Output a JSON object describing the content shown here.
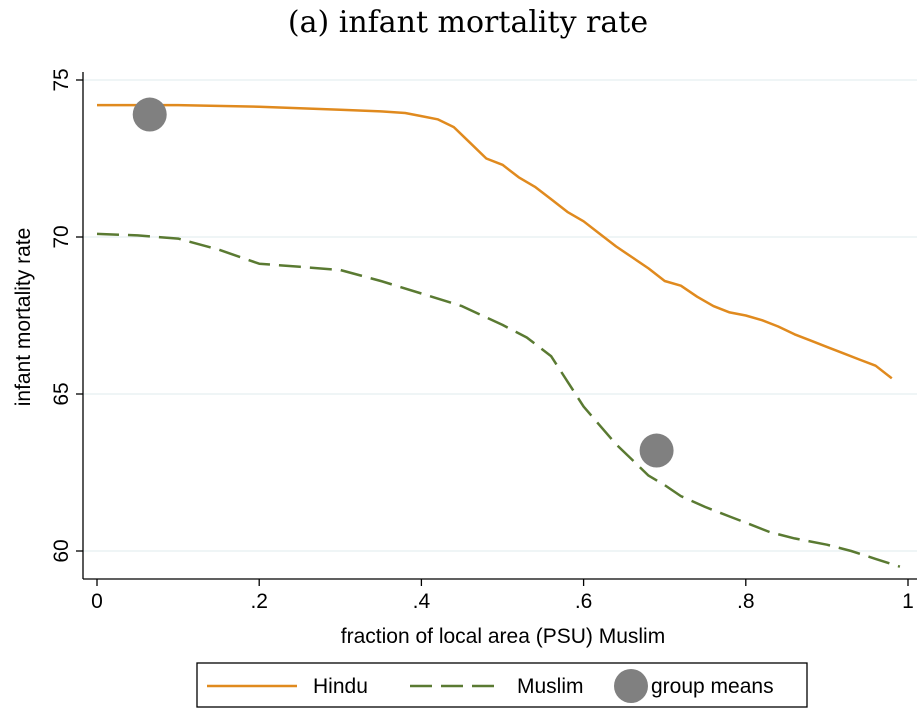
{
  "chart_data": {
    "type": "line",
    "title": "(a) infant mortality rate",
    "xlabel": "fraction of local area (PSU) Muslim",
    "ylabel": "infant mortality rate",
    "xlim": [
      0,
      1
    ],
    "ylim": [
      59.5,
      75.4
    ],
    "xticks": [
      0,
      0.2,
      0.4,
      0.6,
      0.8,
      1
    ],
    "xtick_labels": [
      "0",
      ".2",
      ".4",
      ".6",
      ".8",
      "1"
    ],
    "yticks": [
      60,
      65,
      70,
      75
    ],
    "ytick_labels": [
      "60",
      "65",
      "70",
      "75"
    ],
    "grid": true,
    "legend_position": "bottom",
    "series": [
      {
        "name": "Hindu",
        "style": "solid",
        "color": "#e08a1e",
        "x": [
          0.0,
          0.05,
          0.1,
          0.2,
          0.3,
          0.35,
          0.38,
          0.4,
          0.42,
          0.44,
          0.46,
          0.48,
          0.5,
          0.52,
          0.54,
          0.56,
          0.58,
          0.6,
          0.62,
          0.64,
          0.66,
          0.68,
          0.7,
          0.72,
          0.74,
          0.76,
          0.78,
          0.8,
          0.82,
          0.84,
          0.86,
          0.88,
          0.9,
          0.92,
          0.94,
          0.96,
          0.98
        ],
        "y": [
          74.2,
          74.2,
          74.2,
          74.15,
          74.05,
          74.0,
          73.95,
          73.85,
          73.75,
          73.5,
          73.0,
          72.5,
          72.3,
          71.9,
          71.6,
          71.2,
          70.8,
          70.5,
          70.1,
          69.7,
          69.35,
          69.0,
          68.6,
          68.45,
          68.1,
          67.8,
          67.6,
          67.5,
          67.35,
          67.15,
          66.9,
          66.7,
          66.5,
          66.3,
          66.1,
          65.9,
          65.5
        ]
      },
      {
        "name": "Muslim",
        "style": "dashed",
        "color": "#5a7a32",
        "x": [
          0.0,
          0.05,
          0.1,
          0.15,
          0.2,
          0.25,
          0.3,
          0.35,
          0.4,
          0.45,
          0.5,
          0.53,
          0.56,
          0.58,
          0.6,
          0.62,
          0.64,
          0.66,
          0.68,
          0.7,
          0.72,
          0.75,
          0.78,
          0.8,
          0.83,
          0.86,
          0.9,
          0.93,
          0.96,
          0.99
        ],
        "y": [
          70.1,
          70.05,
          69.95,
          69.6,
          69.15,
          69.05,
          68.95,
          68.6,
          68.2,
          67.8,
          67.2,
          66.8,
          66.2,
          65.4,
          64.6,
          64.0,
          63.4,
          62.9,
          62.4,
          62.1,
          61.75,
          61.4,
          61.1,
          60.9,
          60.6,
          60.4,
          60.2,
          60.0,
          59.75,
          59.5
        ]
      }
    ],
    "points": {
      "name": "group means",
      "color": "#808080",
      "x": [
        0.065,
        0.69
      ],
      "y": [
        73.9,
        63.2
      ]
    },
    "legend": [
      "Hindu",
      "Muslim",
      "group means"
    ]
  }
}
